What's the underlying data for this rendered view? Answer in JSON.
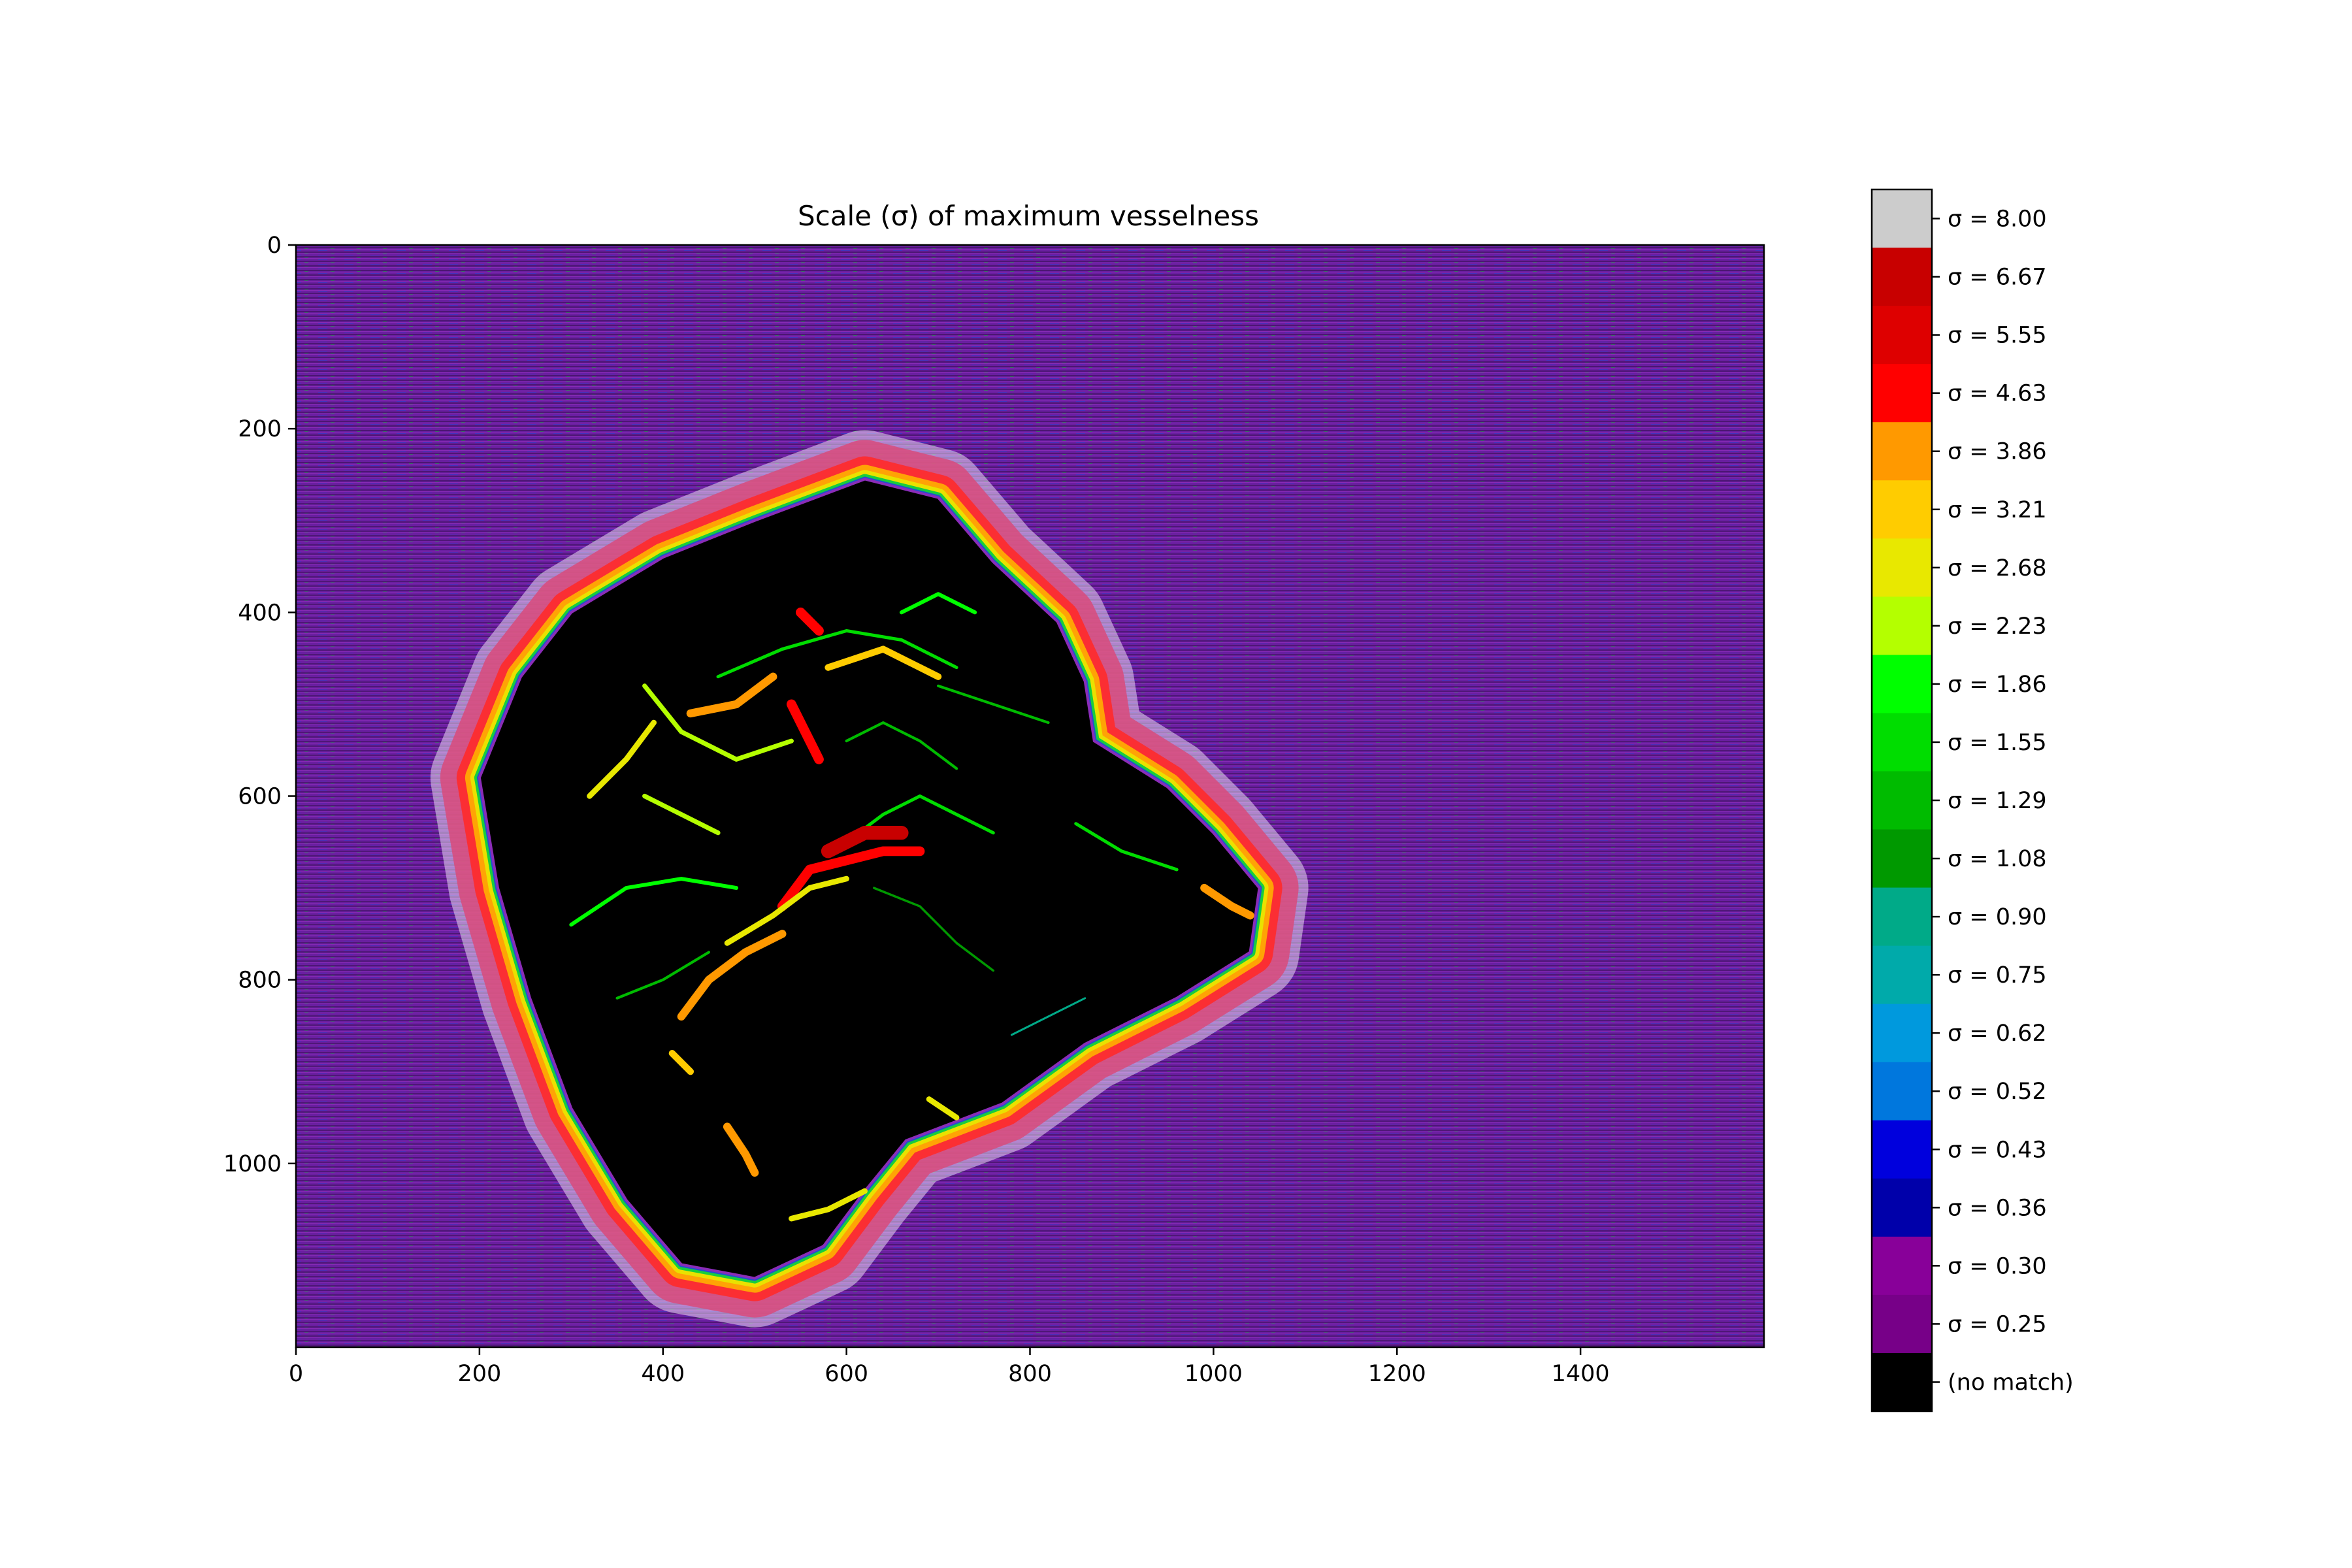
{
  "chart_data": {
    "type": "heatmap",
    "title": "Scale (σ) of maximum vesselness",
    "xlabel": "",
    "ylabel": "",
    "xlim": [
      0,
      1600
    ],
    "ylim": [
      1200,
      0
    ],
    "x_ticks": [
      0,
      200,
      400,
      600,
      800,
      1000,
      1200,
      1400
    ],
    "y_ticks": [
      0,
      200,
      400,
      600,
      800,
      1000
    ],
    "x_tick_labels": [
      "0",
      "200",
      "400",
      "600",
      "800",
      "1000",
      "1200",
      "1400"
    ],
    "y_tick_labels": [
      "0",
      "200",
      "400",
      "600",
      "800",
      "1000"
    ],
    "background_color": "#6a1fa0",
    "region": {
      "label": "(no match)",
      "color": "#000000",
      "boundary": [
        [
          620,
          255
        ],
        [
          700,
          275
        ],
        [
          760,
          345
        ],
        [
          830,
          410
        ],
        [
          860,
          475
        ],
        [
          870,
          540
        ],
        [
          950,
          590
        ],
        [
          1000,
          640
        ],
        [
          1050,
          700
        ],
        [
          1040,
          770
        ],
        [
          960,
          820
        ],
        [
          860,
          870
        ],
        [
          770,
          935
        ],
        [
          665,
          975
        ],
        [
          620,
          1030
        ],
        [
          575,
          1090
        ],
        [
          500,
          1125
        ],
        [
          420,
          1110
        ],
        [
          360,
          1040
        ],
        [
          300,
          940
        ],
        [
          255,
          820
        ],
        [
          220,
          700
        ],
        [
          200,
          580
        ],
        [
          245,
          470
        ],
        [
          300,
          400
        ],
        [
          400,
          340
        ],
        [
          500,
          300
        ]
      ]
    },
    "vessels": [
      {
        "points": [
          [
            460,
            470
          ],
          [
            530,
            440
          ],
          [
            600,
            420
          ],
          [
            660,
            430
          ],
          [
            720,
            460
          ]
        ],
        "sigma": 1.55
      },
      {
        "points": [
          [
            380,
            480
          ],
          [
            420,
            530
          ],
          [
            480,
            560
          ],
          [
            540,
            540
          ]
        ],
        "sigma": 2.23
      },
      {
        "points": [
          [
            580,
            460
          ],
          [
            640,
            440
          ],
          [
            700,
            470
          ]
        ],
        "sigma": 3.21
      },
      {
        "points": [
          [
            430,
            510
          ],
          [
            480,
            500
          ],
          [
            520,
            470
          ]
        ],
        "sigma": 3.86
      },
      {
        "points": [
          [
            320,
            600
          ],
          [
            360,
            560
          ],
          [
            390,
            520
          ]
        ],
        "sigma": 2.68
      },
      {
        "points": [
          [
            540,
            500
          ],
          [
            560,
            540
          ],
          [
            570,
            560
          ]
        ],
        "sigma": 4.63
      },
      {
        "points": [
          [
            600,
            650
          ],
          [
            640,
            620
          ],
          [
            680,
            600
          ],
          [
            720,
            620
          ],
          [
            760,
            640
          ]
        ],
        "sigma": 1.55
      },
      {
        "points": [
          [
            580,
            660
          ],
          [
            620,
            640
          ],
          [
            660,
            640
          ]
        ],
        "sigma": 6.67
      },
      {
        "points": [
          [
            530,
            720
          ],
          [
            560,
            680
          ],
          [
            600,
            670
          ],
          [
            640,
            660
          ],
          [
            680,
            660
          ]
        ],
        "sigma": 4.63
      },
      {
        "points": [
          [
            470,
            760
          ],
          [
            520,
            730
          ],
          [
            560,
            700
          ],
          [
            600,
            690
          ]
        ],
        "sigma": 2.68
      },
      {
        "points": [
          [
            420,
            840
          ],
          [
            450,
            800
          ],
          [
            490,
            770
          ],
          [
            530,
            750
          ]
        ],
        "sigma": 3.86
      },
      {
        "points": [
          [
            300,
            740
          ],
          [
            360,
            700
          ],
          [
            420,
            690
          ],
          [
            480,
            700
          ]
        ],
        "sigma": 1.86
      },
      {
        "points": [
          [
            350,
            820
          ],
          [
            400,
            800
          ],
          [
            450,
            770
          ]
        ],
        "sigma": 1.29
      },
      {
        "points": [
          [
            990,
            700
          ],
          [
            1020,
            720
          ],
          [
            1040,
            730
          ]
        ],
        "sigma": 3.86
      },
      {
        "points": [
          [
            850,
            630
          ],
          [
            900,
            660
          ],
          [
            960,
            680
          ]
        ],
        "sigma": 1.55
      },
      {
        "points": [
          [
            600,
            540
          ],
          [
            640,
            520
          ],
          [
            680,
            540
          ],
          [
            720,
            570
          ]
        ],
        "sigma": 1.29
      },
      {
        "points": [
          [
            470,
            960
          ],
          [
            490,
            990
          ],
          [
            500,
            1010
          ]
        ],
        "sigma": 3.86
      },
      {
        "points": [
          [
            540,
            1060
          ],
          [
            580,
            1050
          ],
          [
            620,
            1030
          ]
        ],
        "sigma": 2.68
      },
      {
        "points": [
          [
            380,
            600
          ],
          [
            420,
            620
          ],
          [
            460,
            640
          ]
        ],
        "sigma": 2.23
      },
      {
        "points": [
          [
            630,
            700
          ],
          [
            680,
            720
          ],
          [
            720,
            760
          ],
          [
            760,
            790
          ]
        ],
        "sigma": 1.08
      },
      {
        "points": [
          [
            700,
            480
          ],
          [
            760,
            500
          ],
          [
            820,
            520
          ]
        ],
        "sigma": 1.29
      },
      {
        "points": [
          [
            550,
            400
          ],
          [
            570,
            420
          ]
        ],
        "sigma": 4.63
      },
      {
        "points": [
          [
            660,
            400
          ],
          [
            700,
            380
          ],
          [
            740,
            400
          ]
        ],
        "sigma": 1.86
      },
      {
        "points": [
          [
            410,
            880
          ],
          [
            430,
            900
          ]
        ],
        "sigma": 3.21
      },
      {
        "points": [
          [
            690,
            930
          ],
          [
            720,
            950
          ]
        ],
        "sigma": 2.68
      },
      {
        "points": [
          [
            780,
            860
          ],
          [
            820,
            840
          ],
          [
            860,
            820
          ]
        ],
        "sigma": 0.9
      }
    ],
    "colorbar": {
      "levels": [
        {
          "label": "σ = 8.00",
          "value": 8.0,
          "color": "#cccccc"
        },
        {
          "label": "σ = 6.67",
          "value": 6.67,
          "color": "#c80000"
        },
        {
          "label": "σ = 5.55",
          "value": 5.55,
          "color": "#de0000"
        },
        {
          "label": "σ = 4.63",
          "value": 4.63,
          "color": "#ff0000"
        },
        {
          "label": "σ = 3.86",
          "value": 3.86,
          "color": "#ff9900"
        },
        {
          "label": "σ = 3.21",
          "value": 3.21,
          "color": "#ffcc00"
        },
        {
          "label": "σ = 2.68",
          "value": 2.68,
          "color": "#e8e800"
        },
        {
          "label": "σ = 2.23",
          "value": 2.23,
          "color": "#b4ff00"
        },
        {
          "label": "σ = 1.86",
          "value": 1.86,
          "color": "#00ff00"
        },
        {
          "label": "σ = 1.55",
          "value": 1.55,
          "color": "#00dd00"
        },
        {
          "label": "σ = 1.29",
          "value": 1.29,
          "color": "#00bb00"
        },
        {
          "label": "σ = 1.08",
          "value": 1.08,
          "color": "#009900"
        },
        {
          "label": "σ = 0.90",
          "value": 0.9,
          "color": "#00aa88"
        },
        {
          "label": "σ = 0.75",
          "value": 0.75,
          "color": "#00aaaa"
        },
        {
          "label": "σ = 0.62",
          "value": 0.62,
          "color": "#0099dd"
        },
        {
          "label": "σ = 0.52",
          "value": 0.52,
          "color": "#0077dd"
        },
        {
          "label": "σ = 0.43",
          "value": 0.43,
          "color": "#0000dd"
        },
        {
          "label": "σ = 0.36",
          "value": 0.36,
          "color": "#0000aa"
        },
        {
          "label": "σ = 0.30",
          "value": 0.3,
          "color": "#880099"
        },
        {
          "label": "σ = 0.25",
          "value": 0.25,
          "color": "#770088"
        },
        {
          "label": "(no match)",
          "value": null,
          "color": "#000000"
        }
      ]
    }
  }
}
